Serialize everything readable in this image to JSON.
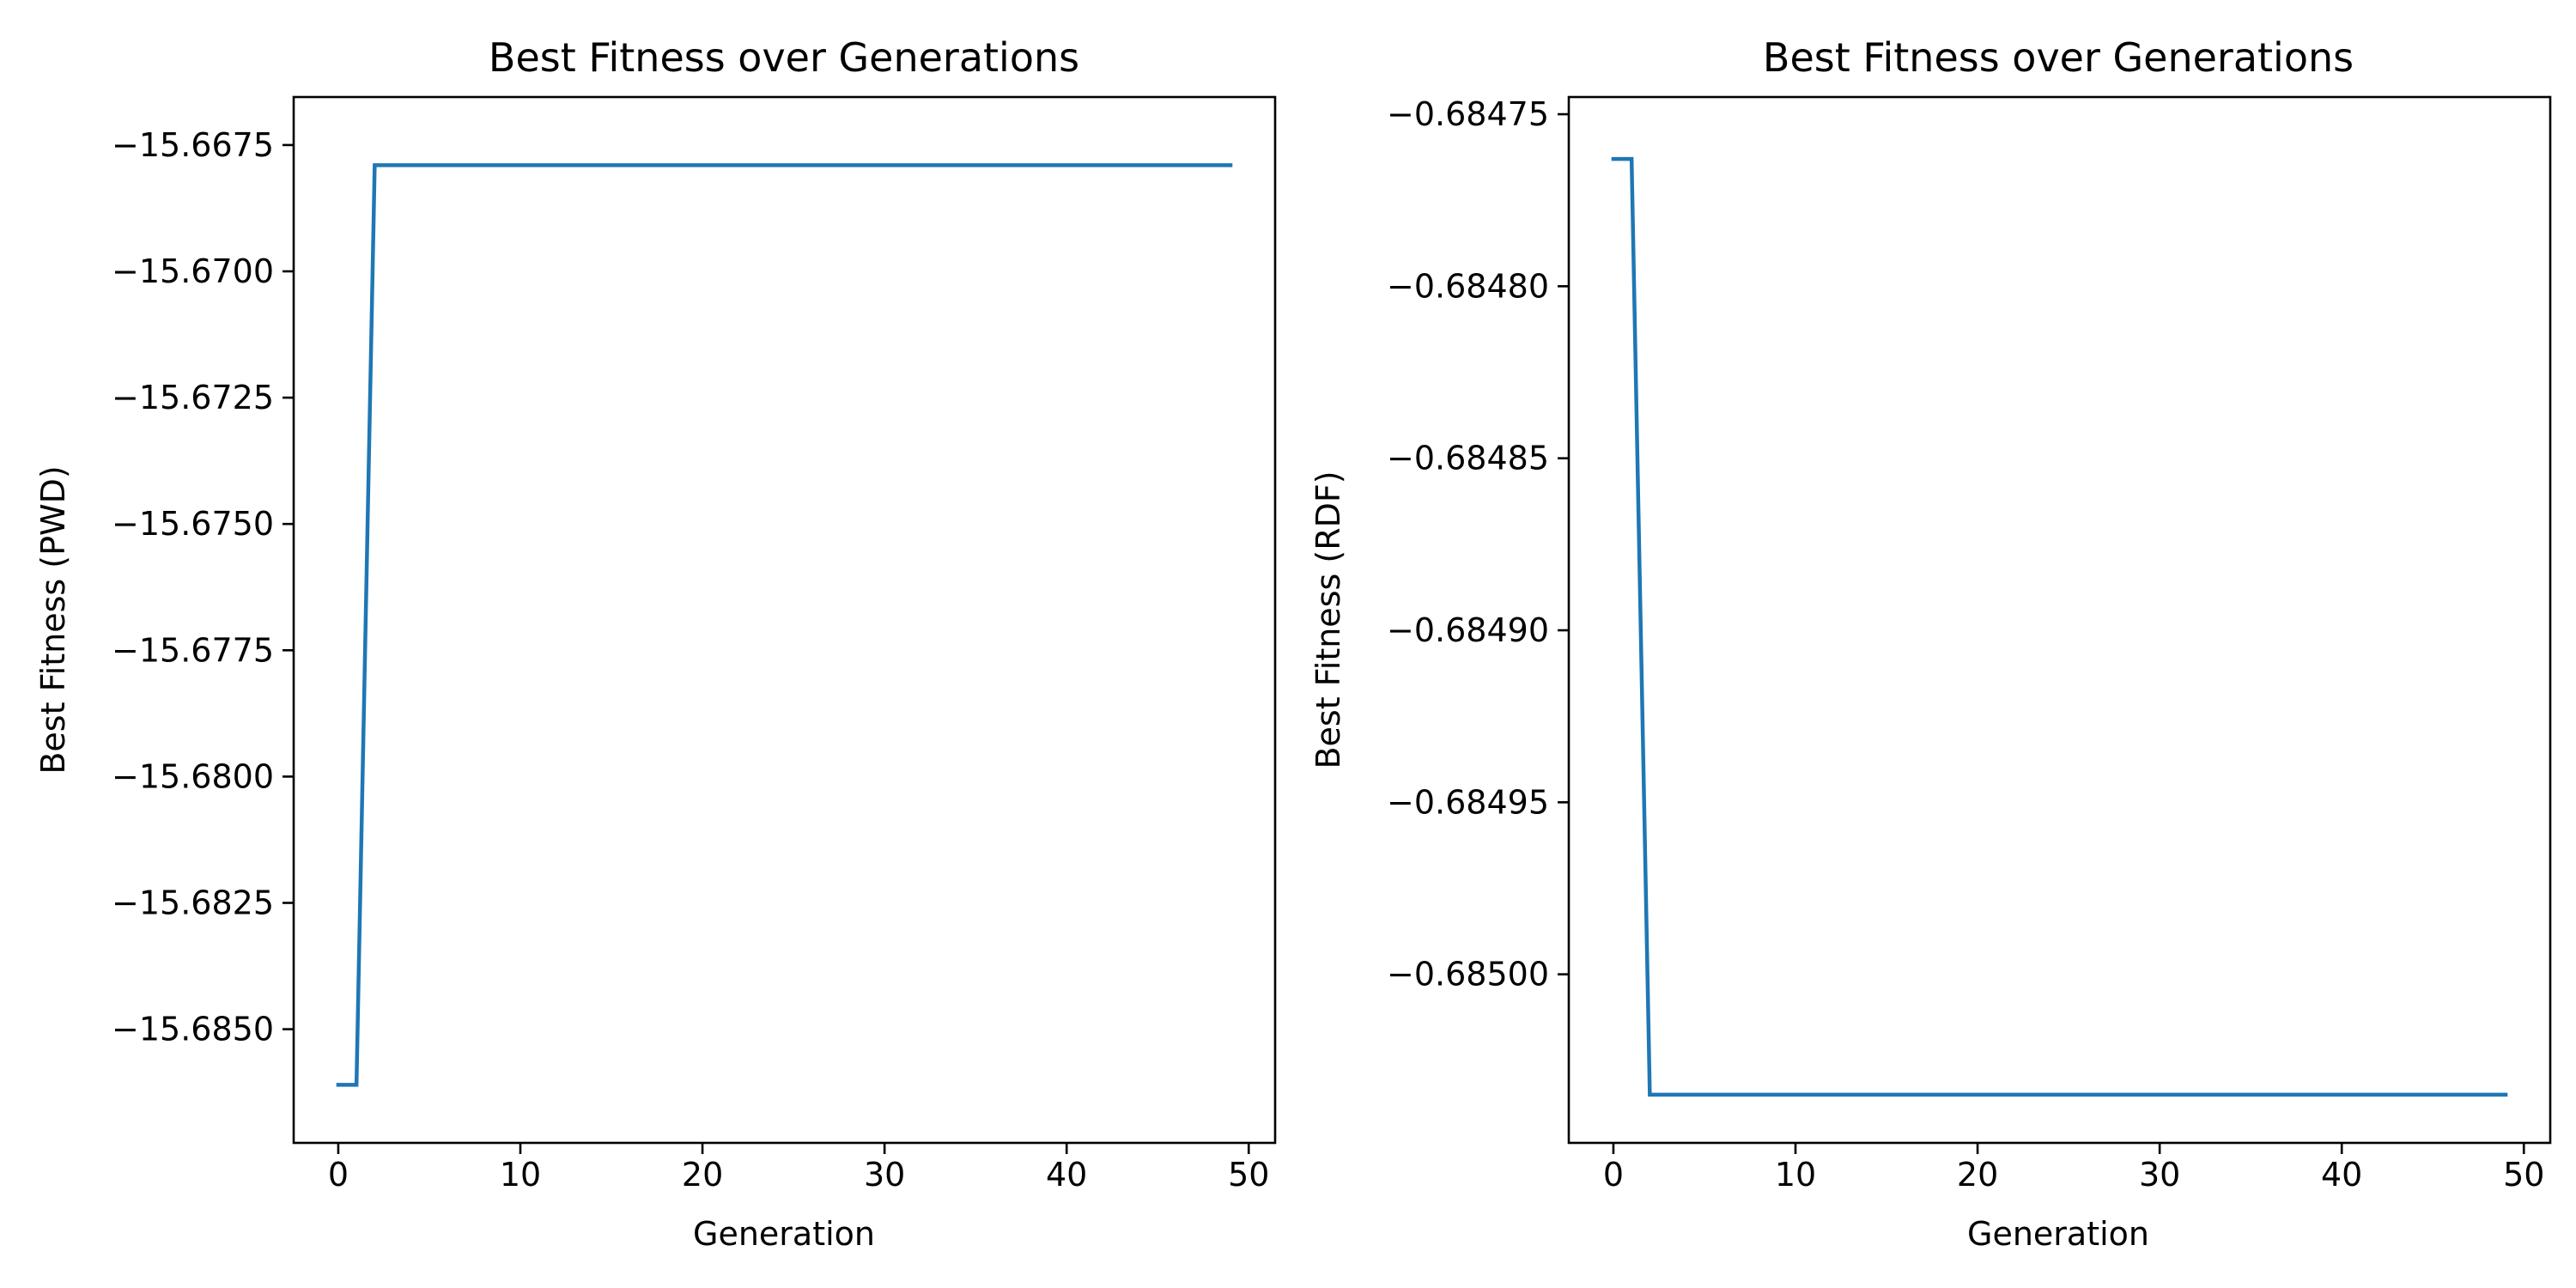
{
  "chart_data": [
    {
      "type": "line",
      "title": "Best Fitness over Generations",
      "xlabel": "Generation",
      "ylabel": "Best Fitness (PWD)",
      "xlim": [
        -2.45,
        51.45
      ],
      "ylim": [
        -15.68725,
        -15.66655
      ],
      "xticks": [
        0,
        10,
        20,
        30,
        40,
        50
      ],
      "xtick_labels": [
        "0",
        "10",
        "20",
        "30",
        "40",
        "50"
      ],
      "yticks": [
        -15.685,
        -15.6825,
        -15.68,
        -15.6775,
        -15.675,
        -15.6725,
        -15.67,
        -15.6675
      ],
      "ytick_labels": [
        "−15.6850",
        "−15.6825",
        "−15.6800",
        "−15.6775",
        "−15.6750",
        "−15.6725",
        "−15.6700",
        "−15.6675"
      ],
      "grid": false,
      "color": "#1f77b4",
      "series": [
        {
          "x": [
            0,
            1,
            2,
            3,
            4,
            5,
            6,
            7,
            8,
            9,
            10,
            11,
            12,
            13,
            14,
            15,
            16,
            17,
            18,
            19,
            20,
            21,
            22,
            23,
            24,
            25,
            26,
            27,
            28,
            29,
            30,
            31,
            32,
            33,
            34,
            35,
            36,
            37,
            38,
            39,
            40,
            41,
            42,
            43,
            44,
            45,
            46,
            47,
            48,
            49
          ],
          "values": [
            -15.6861,
            -15.6861,
            -15.6679,
            -15.6679,
            -15.6679,
            -15.6679,
            -15.6679,
            -15.6679,
            -15.6679,
            -15.6679,
            -15.6679,
            -15.6679,
            -15.6679,
            -15.6679,
            -15.6679,
            -15.6679,
            -15.6679,
            -15.6679,
            -15.6679,
            -15.6679,
            -15.6679,
            -15.6679,
            -15.6679,
            -15.6679,
            -15.6679,
            -15.6679,
            -15.6679,
            -15.6679,
            -15.6679,
            -15.6679,
            -15.6679,
            -15.6679,
            -15.6679,
            -15.6679,
            -15.6679,
            -15.6679,
            -15.6679,
            -15.6679,
            -15.6679,
            -15.6679,
            -15.6679,
            -15.6679,
            -15.6679,
            -15.6679,
            -15.6679,
            -15.6679,
            -15.6679,
            -15.6679,
            -15.6679,
            -15.6679
          ]
        }
      ]
    },
    {
      "type": "line",
      "title": "Best Fitness over Generations",
      "xlabel": "Generation",
      "ylabel": "Best Fitness (RDF)",
      "xlim": [
        -2.45,
        51.45
      ],
      "ylim": [
        -0.685049,
        -0.684745
      ],
      "xticks": [
        0,
        10,
        20,
        30,
        40,
        50
      ],
      "xtick_labels": [
        "0",
        "10",
        "20",
        "30",
        "40",
        "50"
      ],
      "yticks": [
        -0.685,
        -0.68495,
        -0.6849,
        -0.68485,
        -0.6848,
        -0.68475
      ],
      "ytick_labels": [
        "−0.68500",
        "−0.68495",
        "−0.68490",
        "−0.68485",
        "−0.68480",
        "−0.68475"
      ],
      "grid": false,
      "color": "#1f77b4",
      "series": [
        {
          "x": [
            0,
            1,
            2,
            3,
            4,
            5,
            6,
            7,
            8,
            9,
            10,
            11,
            12,
            13,
            14,
            15,
            16,
            17,
            18,
            19,
            20,
            21,
            22,
            23,
            24,
            25,
            26,
            27,
            28,
            29,
            30,
            31,
            32,
            33,
            34,
            35,
            36,
            37,
            38,
            39,
            40,
            41,
            42,
            43,
            44,
            45,
            46,
            47,
            48,
            49
          ],
          "values": [
            -0.684763,
            -0.684763,
            -0.685035,
            -0.685035,
            -0.685035,
            -0.685035,
            -0.685035,
            -0.685035,
            -0.685035,
            -0.685035,
            -0.685035,
            -0.685035,
            -0.685035,
            -0.685035,
            -0.685035,
            -0.685035,
            -0.685035,
            -0.685035,
            -0.685035,
            -0.685035,
            -0.685035,
            -0.685035,
            -0.685035,
            -0.685035,
            -0.685035,
            -0.685035,
            -0.685035,
            -0.685035,
            -0.685035,
            -0.685035,
            -0.685035,
            -0.685035,
            -0.685035,
            -0.685035,
            -0.685035,
            -0.685035,
            -0.685035,
            -0.685035,
            -0.685035,
            -0.685035,
            -0.685035,
            -0.685035,
            -0.685035,
            -0.685035,
            -0.685035,
            -0.685035,
            -0.685035,
            -0.685035,
            -0.685035,
            -0.685035
          ]
        }
      ]
    }
  ]
}
